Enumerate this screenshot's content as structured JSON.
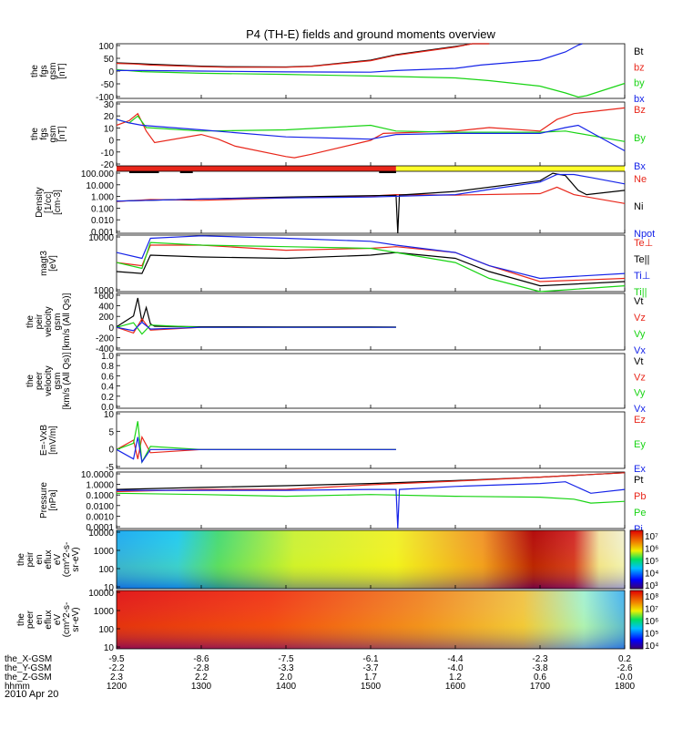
{
  "title": "P4 (TH-E) fields and ground moments overview",
  "date_label": "2010 Apr 20",
  "colors": {
    "black": "#000000",
    "red": "#e8261a",
    "green": "#19d414",
    "blue": "#1624e8",
    "yellow": "#ffff2a",
    "gray": "#909090"
  },
  "chart_data": [
    {
      "type": "line",
      "id": "fgs_mag",
      "ylabel": [
        "the",
        "fgs",
        "gsm",
        "[nT]"
      ],
      "yticks": [
        "100",
        "50",
        "0",
        "-50",
        "-100"
      ],
      "ylim": [
        -100,
        100
      ],
      "series": [
        {
          "name": "Bt",
          "color": "black",
          "x": [
            1200,
            1220,
            1240,
            1300,
            1330,
            1400,
            1430,
            1500,
            1530,
            1600,
            1620,
            1640
          ],
          "y": [
            30,
            28,
            25,
            18,
            16,
            15,
            18,
            40,
            60,
            90,
            100,
            100
          ]
        },
        {
          "name": "bz",
          "color": "red",
          "x": [
            1200,
            1220,
            1240,
            1300,
            1330,
            1400,
            1430,
            1500,
            1530,
            1600,
            1620,
            1640
          ],
          "y": [
            28,
            26,
            22,
            16,
            14,
            14,
            17,
            38,
            58,
            88,
            100,
            100
          ]
        },
        {
          "name": "by",
          "color": "green",
          "x": [
            1200,
            1230,
            1300,
            1400,
            1430,
            1500,
            1600,
            1640,
            1700,
            1730,
            1745,
            1755,
            1800
          ],
          "y": [
            5,
            -2,
            -8,
            -12,
            -14,
            -18,
            -25,
            -35,
            -55,
            -80,
            -95,
            -90,
            -45
          ]
        },
        {
          "name": "bx",
          "color": "blue",
          "x": [
            1200,
            1230,
            1300,
            1400,
            1500,
            1530,
            1600,
            1630,
            1700,
            1730,
            1745,
            1750
          ],
          "y": [
            2,
            2,
            0,
            -3,
            -4,
            2,
            10,
            22,
            40,
            70,
            95,
            100
          ]
        }
      ]
    },
    {
      "type": "line",
      "id": "fgs_zoom",
      "ylabel": [
        "the",
        "fgs",
        "gsm",
        "[nT]"
      ],
      "yticks": [
        "30",
        "20",
        "10",
        "0",
        "-10",
        "-20"
      ],
      "ylim": [
        -25,
        30
      ],
      "series": [
        {
          "name": "Bz",
          "color": "red",
          "x": [
            1200,
            1215,
            1225,
            1235,
            1245,
            1300,
            1320,
            1340,
            1400,
            1410,
            1430,
            1500,
            1515,
            1600,
            1640,
            1700,
            1720,
            1740,
            1800
          ],
          "y": [
            10,
            14,
            20,
            5,
            -5,
            2,
            -2,
            -8,
            -17,
            -18,
            -15,
            -3,
            3,
            5,
            8,
            5,
            15,
            20,
            25
          ]
        },
        {
          "name": "By",
          "color": "green",
          "x": [
            1200,
            1215,
            1225,
            1235,
            1300,
            1400,
            1500,
            1530,
            1600,
            1700,
            1730,
            1800
          ],
          "y": [
            15,
            12,
            18,
            8,
            5,
            6,
            10,
            5,
            4,
            4,
            5,
            -4
          ]
        },
        {
          "name": "Bx",
          "color": "blue",
          "x": [
            1200,
            1215,
            1230,
            1300,
            1400,
            1500,
            1530,
            1600,
            1700,
            1730,
            1745,
            1800
          ],
          "y": [
            15,
            12,
            10,
            6,
            0,
            -2,
            2,
            3,
            3,
            8,
            10,
            -12
          ]
        }
      ]
    },
    {
      "type": "line",
      "id": "density",
      "ylabel": [
        "Density",
        "[1/cc]",
        "[cm-3]"
      ],
      "yticks": [
        "100.000",
        "10.000",
        "1.000",
        "0.100",
        "0.010",
        "0.001"
      ],
      "ylim": [
        0.0005,
        300
      ],
      "log": true,
      "series": [
        {
          "name": "Ne",
          "color": "red",
          "x": [
            1200,
            1240,
            1300,
            1400,
            1500,
            1530,
            1600,
            1700,
            1720,
            1740,
            1800
          ],
          "y": [
            0.45,
            0.7,
            0.6,
            1.0,
            1.5,
            2.0,
            1.8,
            2.5,
            10,
            2,
            0.3
          ]
        },
        {
          "name": "Ni",
          "color": "black",
          "x": [
            1200,
            1240,
            1300,
            1400,
            1500,
            1530,
            1532,
            1534,
            1600,
            1700,
            1715,
            1730,
            1745,
            1755,
            1800
          ],
          "y": [
            0.5,
            0.6,
            0.8,
            1.2,
            1.6,
            1.7,
            0.0005,
            1.8,
            4,
            40,
            200,
            120,
            5,
            2,
            5
          ]
        },
        {
          "name": "Npot",
          "color": "blue",
          "x": [
            1200,
            1240,
            1300,
            1400,
            1500,
            1600,
            1650,
            1700,
            1720,
            1740,
            1760,
            1800
          ],
          "y": [
            0.5,
            0.6,
            0.8,
            1.0,
            1.2,
            2,
            8,
            30,
            150,
            150,
            80,
            20
          ]
        }
      ]
    },
    {
      "type": "line",
      "id": "temperature",
      "ylabel": [
        "magt3",
        "[eV]"
      ],
      "yticks": [
        "10000",
        "1000"
      ],
      "ylim": [
        200,
        10000
      ],
      "log": true,
      "series": [
        {
          "name": "Te⊥",
          "color": "red",
          "x": [
            1200,
            1230,
            1240,
            1300,
            1400,
            1500,
            1530,
            1600,
            1640,
            1700,
            1800
          ],
          "y": [
            1500,
            1200,
            5000,
            5000,
            3500,
            4000,
            4500,
            3000,
            1200,
            400,
            500
          ]
        },
        {
          "name": "Te||",
          "color": "black",
          "x": [
            1200,
            1230,
            1240,
            1300,
            1400,
            1500,
            1530,
            1600,
            1640,
            1700,
            1800
          ],
          "y": [
            800,
            700,
            2500,
            2200,
            2000,
            2500,
            3000,
            2000,
            800,
            300,
            400
          ]
        },
        {
          "name": "Ti⊥",
          "color": "blue",
          "x": [
            1200,
            1230,
            1240,
            1300,
            1400,
            1500,
            1530,
            1600,
            1640,
            1700,
            1800
          ],
          "y": [
            3000,
            2000,
            8000,
            9500,
            8000,
            6500,
            5000,
            3000,
            1200,
            500,
            700
          ]
        },
        {
          "name": "Ti||",
          "color": "green",
          "x": [
            1200,
            1230,
            1240,
            1300,
            1400,
            1500,
            1530,
            1600,
            1640,
            1700,
            1800
          ],
          "y": [
            1500,
            1000,
            6000,
            5000,
            4500,
            4000,
            3000,
            1500,
            500,
            200,
            300
          ]
        }
      ]
    },
    {
      "type": "line",
      "id": "peir_velocity",
      "ylabel": [
        "the",
        "peir",
        "velocity",
        "gsm",
        "[km/s (All Qs)]"
      ],
      "yticks": [
        "600",
        "400",
        "200",
        "0",
        "-200",
        "-400"
      ],
      "ylim": [
        -400,
        600
      ],
      "series": [
        {
          "name": "Vt",
          "color": "black",
          "x": [
            1200,
            1220,
            1225,
            1230,
            1235,
            1240,
            1245,
            1300,
            1400,
            1500,
            1530
          ],
          "y": [
            10,
            200,
            520,
            100,
            350,
            60,
            20,
            10,
            8,
            8,
            6
          ]
        },
        {
          "name": "Vz",
          "color": "red",
          "x": [
            1200,
            1220,
            1230,
            1240,
            1300,
            1400,
            1500,
            1530
          ],
          "y": [
            0,
            -100,
            150,
            -50,
            0,
            0,
            0,
            0
          ]
        },
        {
          "name": "Vy",
          "color": "green",
          "x": [
            1200,
            1220,
            1230,
            1240,
            1300,
            1400,
            1500,
            1530
          ],
          "y": [
            0,
            80,
            -120,
            40,
            0,
            0,
            0,
            0
          ]
        },
        {
          "name": "Vx",
          "color": "blue",
          "x": [
            1200,
            1220,
            1230,
            1240,
            1300,
            1400,
            1500,
            1530
          ],
          "y": [
            0,
            -60,
            90,
            -30,
            0,
            0,
            0,
            0
          ]
        }
      ]
    },
    {
      "type": "line",
      "id": "peer_velocity",
      "ylabel": [
        "the",
        "peer",
        "velocity",
        "gsm",
        "[km/s (All Qs)]"
      ],
      "yticks": [
        "1.0",
        "0.8",
        "0.6",
        "0.4",
        "0.2",
        "0.0"
      ],
      "ylim": [
        0,
        1
      ],
      "series": [
        {
          "name": "Vt",
          "color": "black",
          "x": [],
          "y": []
        },
        {
          "name": "Vz",
          "color": "red",
          "x": [],
          "y": []
        },
        {
          "name": "Vy",
          "color": "green",
          "x": [],
          "y": []
        },
        {
          "name": "Vx",
          "color": "blue",
          "x": [],
          "y": []
        }
      ]
    },
    {
      "type": "line",
      "id": "efield",
      "ylabel": [
        "E=-VxB",
        "[mV/m]"
      ],
      "yticks": [
        "10",
        "5",
        "0",
        "-5"
      ],
      "ylim": [
        -6,
        12
      ],
      "series": [
        {
          "name": "Ez",
          "color": "red",
          "x": [
            1200,
            1220,
            1225,
            1230,
            1240,
            1300,
            1400,
            1500,
            1530
          ],
          "y": [
            0,
            3,
            -3,
            4,
            -1,
            0,
            0,
            0,
            0
          ]
        },
        {
          "name": "Ey",
          "color": "green",
          "x": [
            1200,
            1220,
            1225,
            1230,
            1240,
            1300,
            1400,
            1500,
            1530
          ],
          "y": [
            0,
            2,
            9,
            -4,
            1,
            0,
            0,
            0,
            0
          ]
        },
        {
          "name": "Ex",
          "color": "blue",
          "x": [
            1200,
            1220,
            1225,
            1230,
            1240,
            1300,
            1400,
            1500,
            1530
          ],
          "y": [
            0,
            -3,
            4,
            -4,
            0,
            0,
            0,
            0,
            0
          ]
        }
      ]
    },
    {
      "type": "line",
      "id": "pressure",
      "ylabel": [
        "Pressure",
        "[nPa]"
      ],
      "yticks": [
        "10.0000",
        "1.0000",
        "0.1000",
        "0.0100",
        "0.0010",
        "0.0001"
      ],
      "ylim": [
        5e-05,
        30
      ],
      "log": true,
      "series": [
        {
          "name": "Pt",
          "color": "black",
          "x": [
            1200,
            1300,
            1400,
            1500,
            1600,
            1700,
            1750,
            1800
          ],
          "y": [
            0.5,
            0.8,
            1.2,
            2.0,
            4.0,
            9.0,
            15,
            25
          ]
        },
        {
          "name": "Pb",
          "color": "red",
          "x": [
            1200,
            1300,
            1400,
            1500,
            1600,
            1700,
            1750,
            1800
          ],
          "y": [
            0.3,
            0.5,
            0.5,
            1.5,
            3.5,
            9.0,
            15,
            25
          ]
        },
        {
          "name": "Pe",
          "color": "green",
          "x": [
            1200,
            1300,
            1400,
            1500,
            1600,
            1700,
            1740,
            1760,
            1800
          ],
          "y": [
            0.2,
            0.15,
            0.1,
            0.15,
            0.1,
            0.08,
            0.05,
            0.02,
            0.03
          ]
        },
        {
          "name": "Pi",
          "color": "blue",
          "x": [
            1200,
            1300,
            1400,
            1500,
            1530,
            1532,
            1534,
            1600,
            1700,
            1730,
            1760,
            1800
          ],
          "y": [
            0.4,
            0.4,
            0.4,
            0.5,
            0.5,
            5e-05,
            0.5,
            1.0,
            2.0,
            3.0,
            0.2,
            0.5
          ]
        }
      ]
    },
    {
      "type": "heatmap",
      "id": "peir_eflux",
      "ylabel": [
        "the",
        "peir",
        "en",
        "eflux",
        "eV",
        "(cm^2-s-",
        "sr-eV)"
      ],
      "yticks": [
        "10000",
        "1000",
        "100",
        "10"
      ],
      "colorbar_ticks": [
        "10⁷",
        "10⁶",
        "10⁵",
        "10⁴",
        "10³"
      ]
    },
    {
      "type": "heatmap",
      "id": "peer_eflux",
      "ylabel": [
        "the",
        "peer",
        "en",
        "eflux",
        "eV",
        "(cm^2-s-",
        "sr-eV)"
      ],
      "yticks": [
        "10000",
        "1000",
        "100",
        "10"
      ],
      "colorbar_ticks": [
        "10⁸",
        "10⁷",
        "10⁶",
        "10⁵",
        "10⁴"
      ]
    }
  ],
  "x_axis": {
    "labels": [
      "the_X-GSM",
      "the_Y-GSM",
      "the_Z-GSM",
      "hhmm"
    ],
    "ticks": [
      {
        "x": 1200,
        "vals": [
          "-9.5",
          "-2.2",
          "2.3",
          "1200"
        ]
      },
      {
        "x": 1300,
        "vals": [
          "-8.6",
          "-2.8",
          "2.2",
          "1300"
        ]
      },
      {
        "x": 1400,
        "vals": [
          "-7.5",
          "-3.3",
          "2.0",
          "1400"
        ]
      },
      {
        "x": 1500,
        "vals": [
          "-6.1",
          "-3.7",
          "1.7",
          "1500"
        ]
      },
      {
        "x": 1600,
        "vals": [
          "-4.4",
          "-4.0",
          "1.2",
          "1600"
        ]
      },
      {
        "x": 1700,
        "vals": [
          "-2.3",
          "-3.8",
          "0.6",
          "1700"
        ]
      },
      {
        "x": 1800,
        "vals": [
          "0.2",
          "-2.6",
          "-0.0",
          "1800"
        ]
      }
    ]
  }
}
